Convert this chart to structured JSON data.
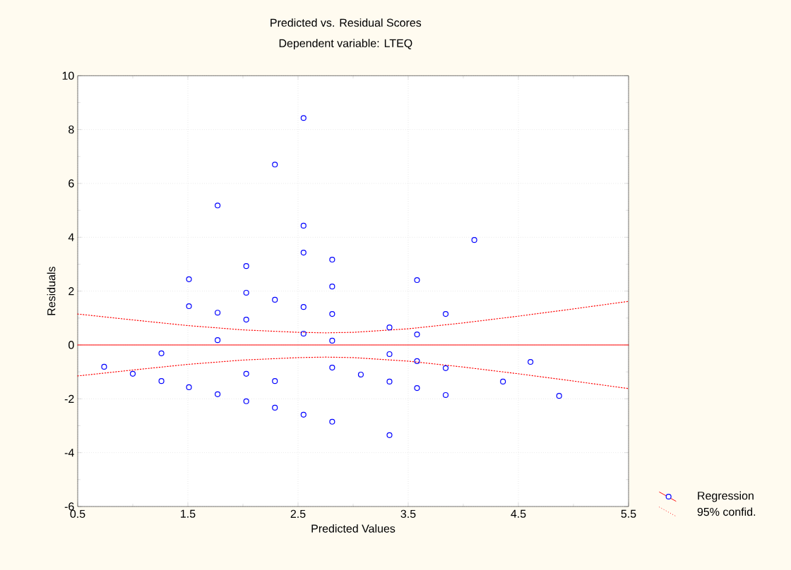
{
  "chart_data": {
    "type": "scatter",
    "title": "Predicted vs. Residual Scores",
    "subtitle": "Dependent variable: LTEQ",
    "xlabel": "Predicted Values",
    "ylabel": "Residuals",
    "xlim": [
      0.5,
      5.5
    ],
    "xticks": [
      0.5,
      1.5,
      2.5,
      3.5,
      4.5,
      5.5
    ],
    "ylim": [
      -6,
      10
    ],
    "yticks": [
      -6,
      -4,
      -2,
      0,
      2,
      4,
      6,
      8,
      10
    ],
    "grid": true,
    "legend": "bottom right",
    "series": [
      {
        "name": "Regression",
        "marker": "circle",
        "color": "#0000ff",
        "x": [
          0.74,
          1.0,
          1.26,
          1.26,
          1.51,
          1.51,
          1.51,
          1.77,
          1.77,
          1.77,
          1.77,
          2.03,
          2.03,
          2.03,
          2.03,
          2.03,
          2.29,
          2.29,
          2.29,
          2.29,
          2.55,
          2.55,
          2.55,
          2.55,
          2.55,
          2.55,
          2.81,
          2.81,
          2.81,
          2.81,
          2.81,
          2.81,
          3.07,
          3.33,
          3.33,
          3.33,
          3.33,
          3.58,
          3.58,
          3.58,
          3.58,
          3.84,
          3.84,
          3.84,
          4.1,
          4.36,
          4.61,
          4.87
        ],
        "values": [
          -0.81,
          -1.07,
          -0.31,
          -1.34,
          2.44,
          1.44,
          -1.57,
          5.18,
          1.2,
          0.18,
          -1.83,
          2.93,
          1.94,
          0.94,
          -1.07,
          -2.09,
          6.7,
          1.68,
          -1.34,
          -2.33,
          8.43,
          4.43,
          3.43,
          1.41,
          0.42,
          -2.59,
          3.17,
          2.17,
          1.15,
          0.16,
          -0.84,
          -2.85,
          -1.1,
          0.65,
          -0.34,
          -1.36,
          -3.35,
          2.41,
          0.39,
          -0.6,
          -1.6,
          1.15,
          -0.86,
          -1.86,
          3.9,
          -1.36,
          -0.63,
          -1.89
        ]
      },
      {
        "type": "line",
        "color": "#ff0000",
        "line_style": "solid",
        "x": [
          0.5,
          5.5
        ],
        "values": [
          0,
          0
        ]
      },
      {
        "name": "95% confid.",
        "type": "line",
        "color": "#ff0000",
        "line_style": "dotted",
        "x": [
          0.5,
          1.0,
          1.5,
          2.0,
          2.5,
          2.75,
          3.0,
          3.5,
          4.0,
          4.5,
          5.0,
          5.5
        ],
        "values": [
          1.15,
          0.93,
          0.72,
          0.56,
          0.47,
          0.45,
          0.47,
          0.6,
          0.82,
          1.07,
          1.34,
          1.62
        ]
      },
      {
        "type": "line",
        "color": "#ff0000",
        "line_style": "dotted",
        "x": [
          0.5,
          1.0,
          1.5,
          2.0,
          2.5,
          2.75,
          3.0,
          3.5,
          4.0,
          4.5,
          5.0,
          5.5
        ],
        "values": [
          -1.15,
          -0.93,
          -0.72,
          -0.56,
          -0.47,
          -0.45,
          -0.47,
          -0.6,
          -0.82,
          -1.07,
          -1.34,
          -1.62
        ]
      }
    ]
  }
}
